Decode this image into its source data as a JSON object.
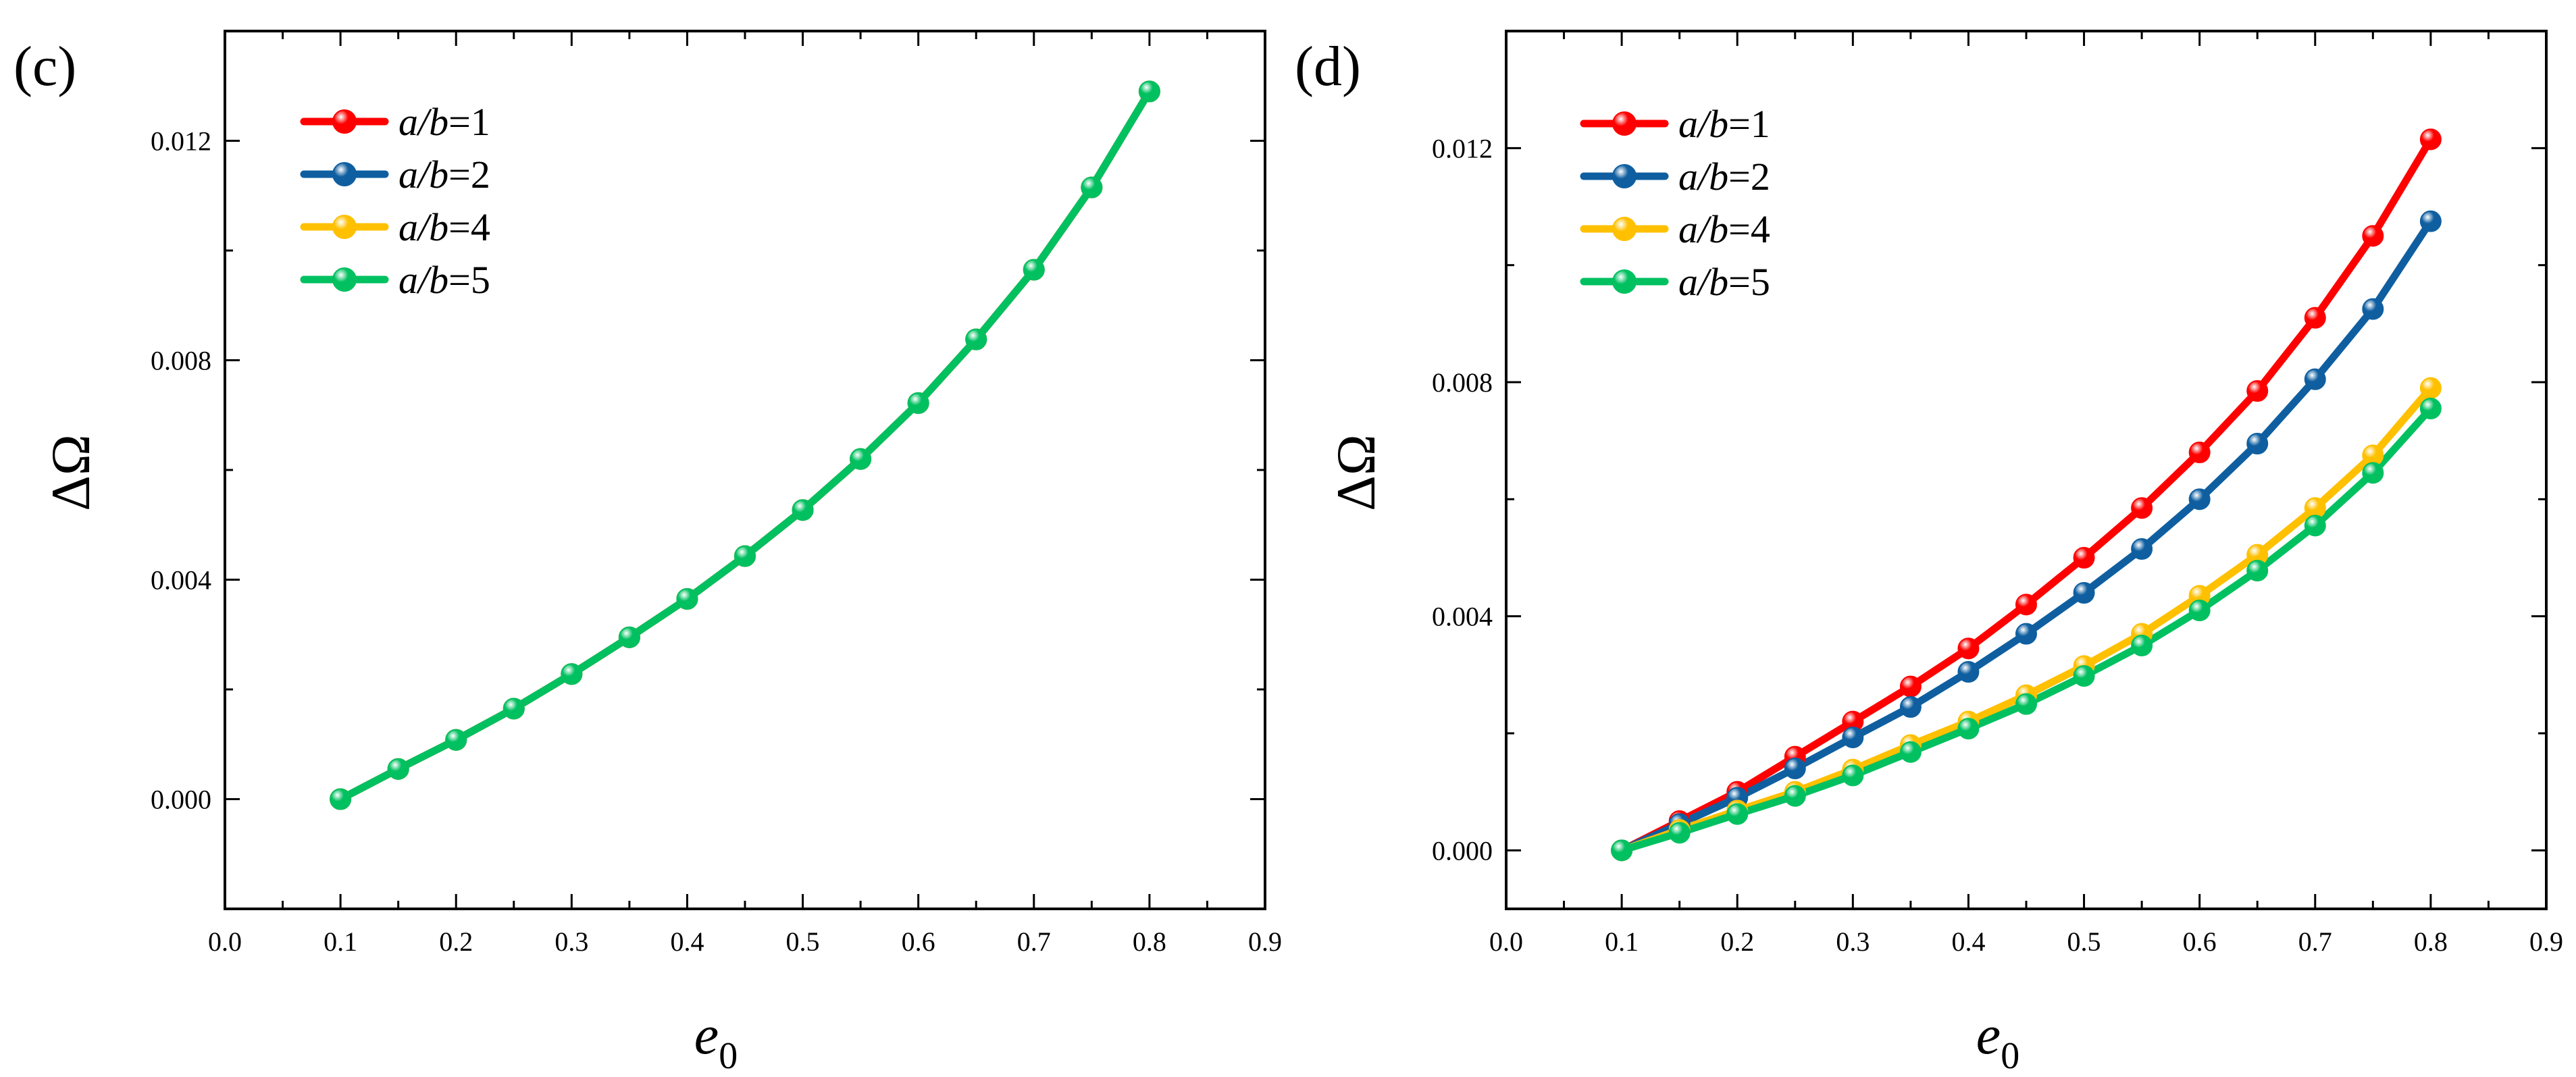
{
  "chart_data": [
    {
      "panel_label": "(c)",
      "type": "line",
      "xlabel_main": "e",
      "xlabel_sub": "0",
      "ylabel": "ΔΩ",
      "xlim": [
        0.0,
        0.9
      ],
      "ylim": [
        -0.002,
        0.014
      ],
      "x_ticks": [
        "0.0",
        "0.1",
        "0.2",
        "0.3",
        "0.4",
        "0.5",
        "0.6",
        "0.7",
        "0.8",
        "0.9"
      ],
      "y_ticks": [
        "0.000",
        "0.004",
        "0.008",
        "0.012"
      ],
      "legend": {
        "position": "top-left",
        "entries": [
          {
            "prefix": "a/b",
            "suffix": "=1",
            "color": "#ff0000"
          },
          {
            "prefix": "a/b",
            "suffix": "=2",
            "color": "#0f5fa0"
          },
          {
            "prefix": "a/b",
            "suffix": "=4",
            "color": "#ffc000"
          },
          {
            "prefix": "a/b",
            "suffix": "=5",
            "color": "#00c060"
          }
        ]
      },
      "x": [
        0.1,
        0.15,
        0.2,
        0.25,
        0.3,
        0.35,
        0.4,
        0.45,
        0.5,
        0.55,
        0.6,
        0.65,
        0.7,
        0.75,
        0.8
      ],
      "series": [
        {
          "name": "a/b=1",
          "color": "#ff0000",
          "values": [
            0.0,
            0.00055,
            0.00108,
            0.00165,
            0.00228,
            0.00295,
            0.00365,
            0.00443,
            0.00527,
            0.0062,
            0.00722,
            0.00838,
            0.00965,
            0.01115,
            0.0129
          ]
        },
        {
          "name": "a/b=2",
          "color": "#0f5fa0",
          "values": [
            0.0,
            0.00055,
            0.00108,
            0.00165,
            0.00228,
            0.00295,
            0.00365,
            0.00443,
            0.00527,
            0.0062,
            0.00722,
            0.00838,
            0.00965,
            0.01115,
            0.0129
          ]
        },
        {
          "name": "a/b=4",
          "color": "#ffc000",
          "values": [
            0.0,
            0.00055,
            0.00108,
            0.00165,
            0.00228,
            0.00295,
            0.00365,
            0.00443,
            0.00527,
            0.0062,
            0.00722,
            0.00838,
            0.00965,
            0.01115,
            0.0129
          ]
        },
        {
          "name": "a/b=5",
          "color": "#00c060",
          "values": [
            0.0,
            0.00055,
            0.00108,
            0.00165,
            0.00228,
            0.00295,
            0.00365,
            0.00443,
            0.00527,
            0.0062,
            0.00722,
            0.00838,
            0.00965,
            0.01115,
            0.0129
          ]
        }
      ]
    },
    {
      "panel_label": "(d)",
      "type": "line",
      "xlabel_main": "e",
      "xlabel_sub": "0",
      "ylabel": "ΔΩ",
      "xlim": [
        0.0,
        0.9
      ],
      "ylim": [
        -0.001,
        0.014
      ],
      "x_ticks": [
        "0.0",
        "0.1",
        "0.2",
        "0.3",
        "0.4",
        "0.5",
        "0.6",
        "0.7",
        "0.8",
        "0.9"
      ],
      "y_ticks": [
        "0.000",
        "0.004",
        "0.008",
        "0.012"
      ],
      "legend": {
        "position": "top-left",
        "entries": [
          {
            "prefix": "a/b",
            "suffix": "=1",
            "color": "#ff0000"
          },
          {
            "prefix": "a/b",
            "suffix": "=2",
            "color": "#0f5fa0"
          },
          {
            "prefix": "a/b",
            "suffix": "=4",
            "color": "#ffc000"
          },
          {
            "prefix": "a/b",
            "suffix": "=5",
            "color": "#00c060"
          }
        ]
      },
      "x": [
        0.1,
        0.15,
        0.2,
        0.25,
        0.3,
        0.35,
        0.4,
        0.45,
        0.5,
        0.55,
        0.6,
        0.65,
        0.7,
        0.75,
        0.8
      ],
      "series": [
        {
          "name": "a/b=1",
          "color": "#ff0000",
          "values": [
            0.0,
            0.0005,
            0.001,
            0.0016,
            0.0022,
            0.0028,
            0.00345,
            0.0042,
            0.005,
            0.00585,
            0.0068,
            0.00785,
            0.0091,
            0.0105,
            0.01215
          ]
        },
        {
          "name": "a/b=2",
          "color": "#0f5fa0",
          "values": [
            0.0,
            0.00045,
            0.0009,
            0.0014,
            0.00193,
            0.00245,
            0.00305,
            0.0037,
            0.0044,
            0.00515,
            0.006,
            0.00695,
            0.00805,
            0.00925,
            0.01075
          ]
        },
        {
          "name": "a/b=4",
          "color": "#ffc000",
          "values": [
            0.0,
            0.00035,
            0.00068,
            0.001,
            0.00138,
            0.0018,
            0.0022,
            0.00265,
            0.00315,
            0.0037,
            0.00435,
            0.00505,
            0.00585,
            0.00675,
            0.0079
          ]
        },
        {
          "name": "a/b=5",
          "color": "#00c060",
          "values": [
            0.0,
            0.0003,
            0.00062,
            0.00093,
            0.00128,
            0.00168,
            0.00208,
            0.0025,
            0.00298,
            0.0035,
            0.0041,
            0.00478,
            0.00555,
            0.00645,
            0.00755
          ]
        }
      ]
    }
  ]
}
